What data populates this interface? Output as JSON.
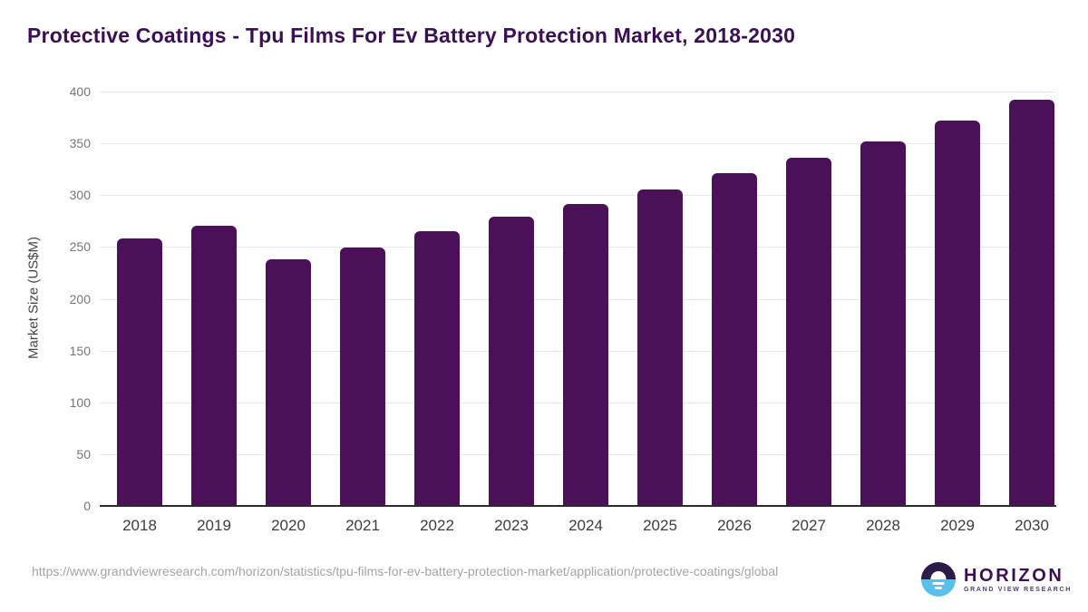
{
  "title": "Protective Coatings - Tpu Films For Ev Battery Protection Market, 2018-2030",
  "chart_data": {
    "type": "bar",
    "title": "Protective Coatings - Tpu Films For Ev Battery Protection Market, 2018-2030",
    "categories": [
      "2018",
      "2019",
      "2020",
      "2021",
      "2022",
      "2023",
      "2024",
      "2025",
      "2026",
      "2027",
      "2028",
      "2029",
      "2030"
    ],
    "values": [
      257,
      270,
      237,
      249,
      264,
      278,
      291,
      305,
      320,
      335,
      351,
      371,
      391
    ],
    "xlabel": "",
    "ylabel": "Market Size (US$M)",
    "ylim": [
      0,
      400
    ],
    "yticks": [
      0,
      50,
      100,
      150,
      200,
      250,
      300,
      350,
      400
    ],
    "grid": true,
    "legend": false,
    "bar_color": "#4a1158"
  },
  "footer": {
    "source_url": "https://www.grandviewresearch.com/horizon/statistics/tpu-films-for-ev-battery-protection-market/application/protective-coatings/global",
    "logo": {
      "icon": "horizon-sunrise-icon",
      "brand": "HORIZON",
      "sub_brand": "GRAND VIEW RESEARCH"
    }
  },
  "colors": {
    "title_text": "#3a0f54",
    "bar": "#4a1158",
    "gridline": "#e8e8e8",
    "axis_line": "#2b2b2b",
    "y_tick_text": "#767676",
    "x_tick_text": "#3d3d3d",
    "url_text": "#a3a3a3",
    "logo_purple": "#2d1b47",
    "logo_blue": "#57c1e9"
  }
}
